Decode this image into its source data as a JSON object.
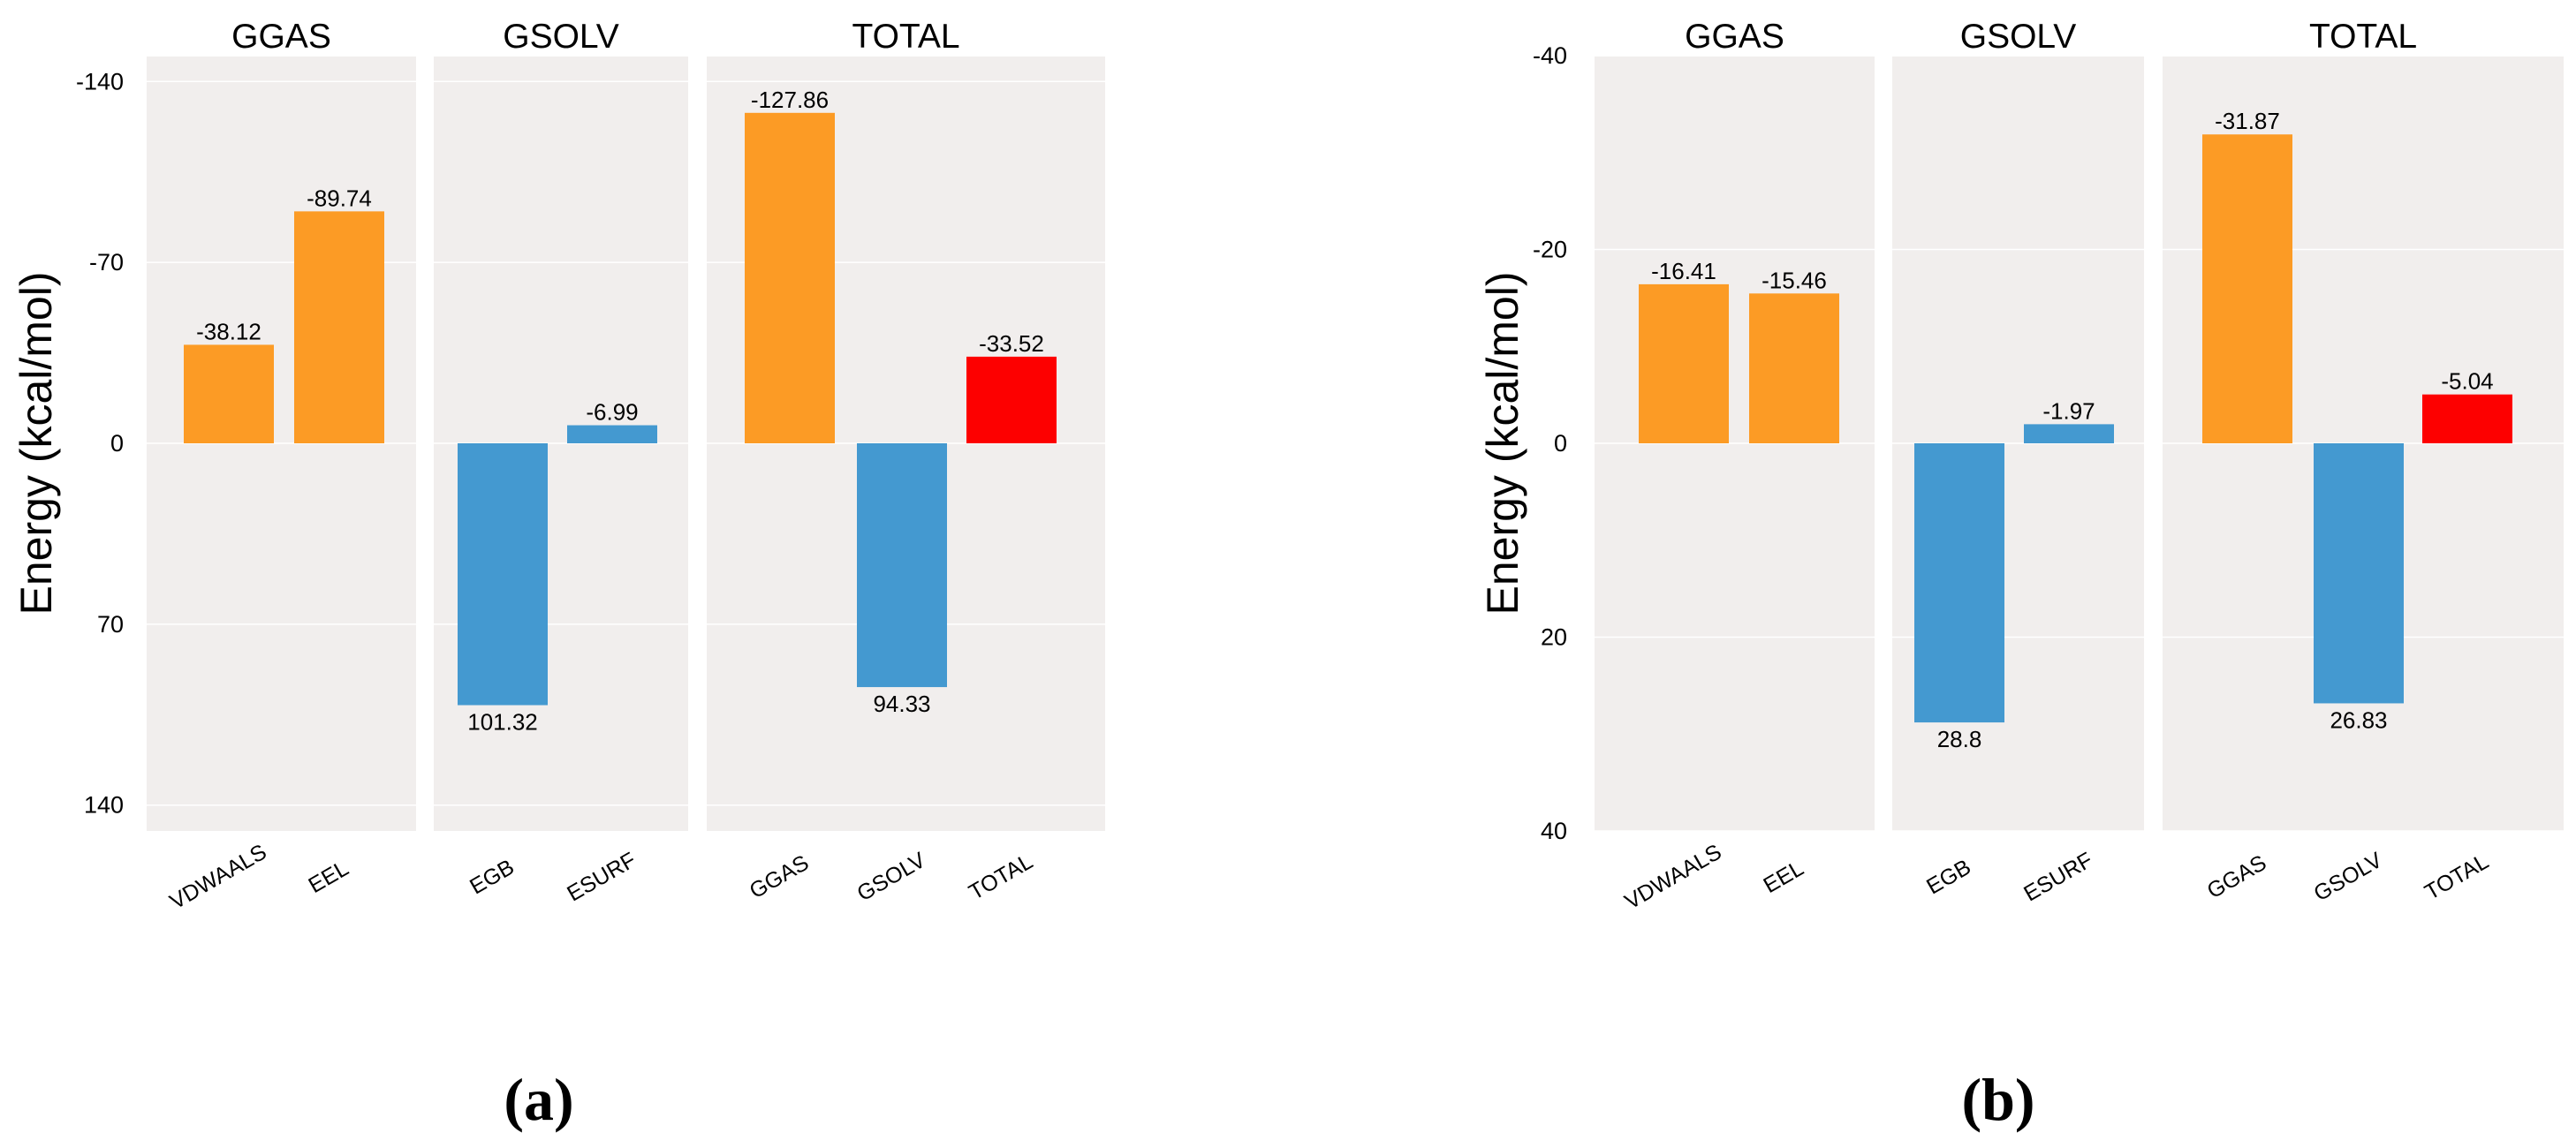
{
  "figure": {
    "panel_a_tag": "(a)",
    "panel_b_tag": "(b)"
  },
  "chart_data": [
    {
      "type": "bar",
      "panel": "(a)",
      "ylabel": "Energy (kcal/mol)",
      "yticks": [
        -140,
        -70,
        0,
        70,
        140
      ],
      "ylim": [
        150,
        -150
      ],
      "y_inverted": true,
      "facets": [
        {
          "title": "GGAS",
          "categories": [
            "VDWAALS",
            "EEL"
          ],
          "values": [
            -38.12,
            -89.74
          ],
          "colors": [
            "#fc9b25",
            "#fc9b25"
          ],
          "labels": [
            "-38.12",
            "-89.74"
          ]
        },
        {
          "title": "GSOLV",
          "categories": [
            "EGB",
            "ESURF"
          ],
          "values": [
            101.32,
            -6.99
          ],
          "colors": [
            "#4499d0",
            "#4499d0"
          ],
          "labels": [
            "101.32",
            "-6.99"
          ]
        },
        {
          "title": "TOTAL",
          "categories": [
            "GGAS",
            "GSOLV",
            "TOTAL"
          ],
          "values": [
            -127.86,
            94.33,
            -33.52
          ],
          "colors": [
            "#fc9b25",
            "#4499d0",
            "#fd0000"
          ],
          "labels": [
            "-127.86",
            "94.33",
            "-33.52"
          ]
        }
      ]
    },
    {
      "type": "bar",
      "panel": "(b)",
      "ylabel": "Energy (kcal/mol)",
      "yticks": [
        -40,
        -20,
        0,
        20,
        40
      ],
      "ylim": [
        40,
        -40
      ],
      "y_inverted": true,
      "facets": [
        {
          "title": "GGAS",
          "categories": [
            "VDWAALS",
            "EEL"
          ],
          "values": [
            -16.41,
            -15.46
          ],
          "colors": [
            "#fc9b25",
            "#fc9b25"
          ],
          "labels": [
            "-16.41",
            "-15.46"
          ]
        },
        {
          "title": "GSOLV",
          "categories": [
            "EGB",
            "ESURF"
          ],
          "values": [
            28.8,
            -1.97
          ],
          "colors": [
            "#4499d0",
            "#4499d0"
          ],
          "labels": [
            "28.8",
            "-1.97"
          ]
        },
        {
          "title": "TOTAL",
          "categories": [
            "GGAS",
            "GSOLV",
            "TOTAL"
          ],
          "values": [
            -31.87,
            26.83,
            -5.04
          ],
          "colors": [
            "#fc9b25",
            "#4499d0",
            "#fd0000"
          ],
          "labels": [
            "-31.87",
            "26.83",
            "-5.04"
          ]
        }
      ]
    }
  ]
}
